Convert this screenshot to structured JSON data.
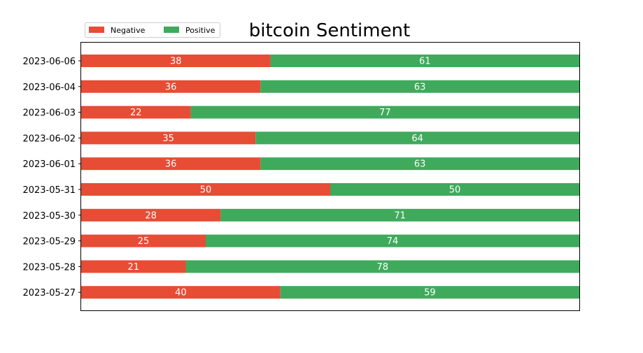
{
  "chart_data": {
    "type": "bar",
    "orientation": "horizontal",
    "stacked": true,
    "title": "bitcoin Sentiment",
    "xlabel": "",
    "ylabel": "",
    "categories": [
      "2023-06-06",
      "2023-06-04",
      "2023-06-03",
      "2023-06-02",
      "2023-06-01",
      "2023-05-31",
      "2023-05-30",
      "2023-05-29",
      "2023-05-28",
      "2023-05-27"
    ],
    "series": [
      {
        "name": "Negative",
        "color": "#e74c35",
        "values": [
          38,
          36,
          22,
          35,
          36,
          50,
          28,
          25,
          21,
          40
        ]
      },
      {
        "name": "Positive",
        "color": "#3faa5c",
        "values": [
          61,
          63,
          77,
          64,
          63,
          50,
          71,
          74,
          78,
          59
        ]
      }
    ],
    "xlim": [
      0,
      100
    ],
    "x_axis_ticks_visible": false,
    "grid": false,
    "legend": {
      "placement": "top-left",
      "entries": [
        "Negative",
        "Positive"
      ]
    }
  }
}
